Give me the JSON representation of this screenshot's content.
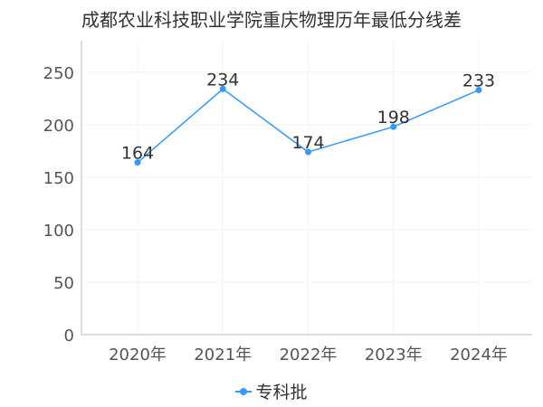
{
  "chart_data": {
    "type": "line",
    "title": "成都农业科技职业学院重庆物理历年最低分线差",
    "categories": [
      "2020年",
      "2021年",
      "2022年",
      "2023年",
      "2024年"
    ],
    "series": [
      {
        "name": "专科批",
        "values": [
          164,
          234,
          174,
          198,
          233
        ],
        "color": "#3399ff"
      }
    ],
    "yticks": [
      0,
      50,
      100,
      150,
      200,
      250
    ],
    "ylim": [
      0,
      280
    ],
    "xlabel": "",
    "ylabel": "",
    "grid": true,
    "legend": "bottom"
  }
}
